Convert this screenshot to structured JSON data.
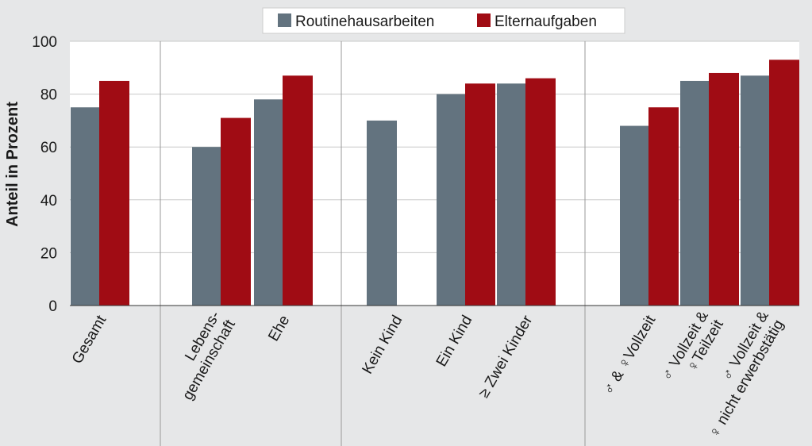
{
  "chart_data": {
    "type": "bar",
    "ylabel": "Anteil in Prozent",
    "ylim": [
      0,
      100
    ],
    "yticks": [
      "0",
      "20",
      "40",
      "60",
      "80",
      "100"
    ],
    "grid": true,
    "legend_position": "top-center",
    "categories": [
      [
        "Gesamt"
      ],
      [
        "Lebens-",
        "gemeinschaft"
      ],
      [
        "Ehe"
      ],
      [
        "Kein Kind"
      ],
      [
        "Ein Kind"
      ],
      [
        "≥ Zwei Kinder"
      ],
      [
        "♂ & ♀Vollzeit"
      ],
      [
        "♂ Vollzeit &",
        "♀Teilzeit"
      ],
      [
        "♂ Vollzeit &",
        "♀ nicht erwerbstätig"
      ]
    ],
    "groups": [
      [
        0
      ],
      [
        1,
        2
      ],
      [
        3,
        4,
        5
      ],
      [
        6,
        7,
        8
      ]
    ],
    "series": [
      {
        "name": "Routinehausarbeiten",
        "color": "#63737f",
        "values": [
          75,
          60,
          78,
          70,
          80,
          84,
          68,
          85,
          87
        ]
      },
      {
        "name": "Elternaufgaben",
        "color": "#a00c14",
        "values": [
          85,
          71,
          87,
          null,
          84,
          86,
          75,
          88,
          93
        ]
      }
    ]
  }
}
